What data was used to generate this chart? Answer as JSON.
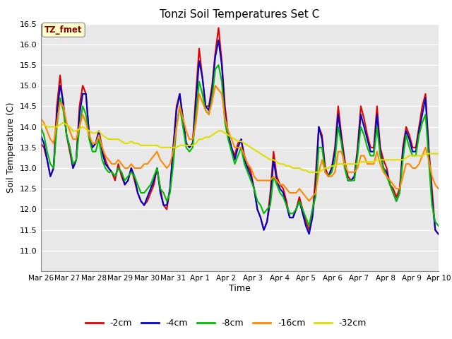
{
  "title": "Tonzi Soil Temperatures Set C",
  "xlabel": "Time",
  "ylabel": "Soil Temperature (C)",
  "ylim": [
    10.5,
    16.5
  ],
  "yticks": [
    11.0,
    11.5,
    12.0,
    12.5,
    13.0,
    13.5,
    14.0,
    14.5,
    15.0,
    15.5,
    16.0,
    16.5
  ],
  "bg_color": "#e8e8e8",
  "label_box_color": "#ffffcc",
  "label_box_text": "TZ_fmet",
  "label_box_text_color": "#8b0000",
  "series_colors": [
    "#dd0000",
    "#0000cc",
    "#00bb00",
    "#ff8800",
    "#dddd00"
  ],
  "series_labels": [
    "-2cm",
    "-4cm",
    "-8cm",
    "-16cm",
    "-32cm"
  ],
  "linewidth": 1.5,
  "x_start_day": 0,
  "x_end_day": 15,
  "xtick_positions": [
    0,
    1,
    2,
    3,
    4,
    5,
    6,
    7,
    8,
    9,
    10,
    11,
    12,
    13,
    14,
    15
  ],
  "xtick_labels": [
    "Mar 26",
    "Mar 27",
    "Mar 28",
    "Mar 29",
    "Mar 30",
    "Mar 31",
    "Apr 1",
    "Apr 2",
    "Apr 3",
    "Apr 4",
    "Apr 5",
    "Apr 6",
    "Apr 7",
    "Apr 8",
    "Apr 9",
    "Apr 10"
  ],
  "neg2cm": [
    13.6,
    13.5,
    13.2,
    12.8,
    13.0,
    14.5,
    15.25,
    14.5,
    13.8,
    13.4,
    13.0,
    13.2,
    14.5,
    15.0,
    14.8,
    13.8,
    13.5,
    13.6,
    13.9,
    13.5,
    13.2,
    13.0,
    12.9,
    12.7,
    13.1,
    12.8,
    12.6,
    12.7,
    13.0,
    12.7,
    12.4,
    12.2,
    12.1,
    12.2,
    12.4,
    12.6,
    13.0,
    12.5,
    12.1,
    12.0,
    12.5,
    13.5,
    14.5,
    14.8,
    14.2,
    13.6,
    13.5,
    13.6,
    14.8,
    15.9,
    15.2,
    14.5,
    14.5,
    15.0,
    15.8,
    16.4,
    15.6,
    14.5,
    13.8,
    13.5,
    13.3,
    13.6,
    13.7,
    13.3,
    13.1,
    12.9,
    12.5,
    12.0,
    11.8,
    11.5,
    11.7,
    12.4,
    13.4,
    12.8,
    12.6,
    12.5,
    12.2,
    11.8,
    11.8,
    12.0,
    12.3,
    12.0,
    11.7,
    11.5,
    11.8,
    12.8,
    14.0,
    13.8,
    13.0,
    12.8,
    13.0,
    13.5,
    14.5,
    13.8,
    13.2,
    12.8,
    12.7,
    12.8,
    13.5,
    14.5,
    14.2,
    13.8,
    13.5,
    13.5,
    14.5,
    13.5,
    13.2,
    13.0,
    12.6,
    12.5,
    12.3,
    12.5,
    13.5,
    14.0,
    13.8,
    13.5,
    13.5,
    14.0,
    14.5,
    14.8,
    13.5,
    12.5,
    11.5,
    11.4
  ],
  "neg4cm": [
    13.8,
    13.6,
    13.2,
    12.8,
    13.0,
    14.3,
    15.0,
    14.6,
    13.8,
    13.5,
    13.0,
    13.2,
    14.3,
    14.8,
    14.8,
    13.8,
    13.5,
    13.6,
    13.9,
    13.4,
    13.1,
    13.0,
    12.9,
    12.8,
    13.0,
    12.9,
    12.6,
    12.7,
    13.0,
    12.8,
    12.4,
    12.2,
    12.1,
    12.3,
    12.5,
    12.7,
    13.0,
    12.4,
    12.1,
    12.1,
    12.5,
    13.5,
    14.4,
    14.8,
    14.2,
    13.6,
    13.5,
    13.6,
    14.6,
    15.6,
    15.2,
    14.5,
    14.4,
    14.9,
    15.7,
    16.1,
    15.5,
    14.3,
    13.8,
    13.5,
    13.2,
    13.5,
    13.7,
    13.2,
    13.0,
    12.8,
    12.5,
    12.0,
    11.8,
    11.5,
    11.7,
    12.2,
    13.2,
    12.7,
    12.5,
    12.4,
    12.1,
    11.8,
    11.8,
    12.0,
    12.2,
    11.9,
    11.6,
    11.4,
    11.8,
    12.5,
    14.0,
    13.7,
    12.9,
    12.8,
    13.0,
    13.4,
    14.3,
    13.7,
    13.1,
    12.7,
    12.7,
    12.8,
    13.4,
    14.3,
    14.0,
    13.7,
    13.4,
    13.4,
    14.3,
    13.4,
    13.0,
    12.9,
    12.6,
    12.4,
    12.2,
    12.4,
    13.4,
    13.9,
    13.7,
    13.4,
    13.4,
    13.9,
    14.3,
    14.7,
    13.4,
    12.3,
    11.5,
    11.4
  ],
  "neg8cm": [
    14.0,
    13.8,
    13.4,
    13.1,
    13.0,
    14.0,
    14.7,
    14.4,
    13.8,
    13.5,
    13.1,
    13.2,
    14.0,
    14.5,
    14.3,
    13.7,
    13.4,
    13.4,
    13.7,
    13.2,
    13.0,
    12.9,
    12.9,
    12.8,
    13.0,
    12.9,
    12.7,
    12.8,
    12.9,
    12.8,
    12.6,
    12.4,
    12.4,
    12.5,
    12.6,
    12.8,
    13.0,
    12.5,
    12.4,
    12.2,
    12.4,
    13.1,
    14.0,
    14.5,
    14.0,
    13.5,
    13.4,
    13.5,
    14.3,
    15.1,
    14.8,
    14.4,
    14.3,
    14.7,
    15.4,
    15.5,
    15.1,
    14.1,
    13.7,
    13.4,
    13.1,
    13.3,
    13.5,
    13.1,
    12.9,
    12.7,
    12.5,
    12.2,
    12.1,
    11.9,
    12.0,
    12.1,
    12.8,
    12.6,
    12.4,
    12.3,
    12.1,
    11.9,
    11.9,
    12.0,
    12.2,
    12.0,
    11.8,
    11.6,
    12.0,
    12.3,
    13.5,
    13.5,
    12.9,
    12.8,
    12.9,
    13.2,
    14.0,
    13.6,
    13.0,
    12.7,
    12.7,
    12.7,
    13.3,
    14.0,
    13.8,
    13.5,
    13.3,
    13.3,
    14.0,
    13.3,
    13.0,
    12.8,
    12.6,
    12.4,
    12.2,
    12.4,
    13.2,
    13.8,
    13.5,
    13.3,
    13.3,
    13.8,
    14.1,
    14.3,
    13.2,
    12.1,
    11.7,
    11.6
  ],
  "neg16cm": [
    14.2,
    14.1,
    13.9,
    13.7,
    13.6,
    14.1,
    14.6,
    14.5,
    14.1,
    13.9,
    13.7,
    13.7,
    14.0,
    14.3,
    14.1,
    13.8,
    13.6,
    13.6,
    13.8,
    13.5,
    13.3,
    13.2,
    13.1,
    13.1,
    13.2,
    13.1,
    13.0,
    13.0,
    13.1,
    13.0,
    13.0,
    13.0,
    13.1,
    13.1,
    13.2,
    13.3,
    13.4,
    13.2,
    13.1,
    13.0,
    13.1,
    13.4,
    14.0,
    14.5,
    14.2,
    13.9,
    13.7,
    13.7,
    14.1,
    14.8,
    14.6,
    14.4,
    14.3,
    14.6,
    15.0,
    14.9,
    14.8,
    14.2,
    13.9,
    13.7,
    13.5,
    13.5,
    13.5,
    13.3,
    13.1,
    13.0,
    12.8,
    12.7,
    12.7,
    12.7,
    12.7,
    12.7,
    12.8,
    12.7,
    12.6,
    12.6,
    12.5,
    12.4,
    12.4,
    12.4,
    12.5,
    12.4,
    12.3,
    12.2,
    12.3,
    12.4,
    12.9,
    13.2,
    12.9,
    12.8,
    12.8,
    12.9,
    13.4,
    13.4,
    13.1,
    12.9,
    12.9,
    12.9,
    13.0,
    13.3,
    13.3,
    13.1,
    13.1,
    13.1,
    13.4,
    13.1,
    12.9,
    12.8,
    12.7,
    12.6,
    12.5,
    12.5,
    12.8,
    13.1,
    13.1,
    13.0,
    13.0,
    13.1,
    13.3,
    13.5,
    13.2,
    12.8,
    12.6,
    12.5
  ],
  "neg32cm": [
    14.05,
    14.05,
    14.0,
    14.0,
    14.0,
    14.0,
    14.05,
    14.1,
    14.05,
    14.0,
    13.9,
    13.9,
    13.95,
    14.0,
    13.95,
    13.9,
    13.85,
    13.85,
    13.9,
    13.8,
    13.75,
    13.7,
    13.7,
    13.7,
    13.7,
    13.65,
    13.6,
    13.6,
    13.65,
    13.6,
    13.6,
    13.55,
    13.55,
    13.55,
    13.55,
    13.55,
    13.55,
    13.5,
    13.5,
    13.5,
    13.5,
    13.5,
    13.5,
    13.55,
    13.55,
    13.55,
    13.55,
    13.55,
    13.6,
    13.7,
    13.7,
    13.75,
    13.75,
    13.8,
    13.85,
    13.9,
    13.9,
    13.85,
    13.8,
    13.75,
    13.7,
    13.65,
    13.65,
    13.6,
    13.55,
    13.5,
    13.45,
    13.4,
    13.35,
    13.3,
    13.25,
    13.2,
    13.2,
    13.15,
    13.1,
    13.1,
    13.05,
    13.05,
    13.0,
    13.0,
    13.0,
    12.95,
    12.95,
    12.9,
    12.9,
    12.9,
    12.9,
    12.95,
    13.0,
    13.0,
    13.05,
    13.05,
    13.1,
    13.1,
    13.1,
    13.1,
    13.1,
    13.1,
    13.1,
    13.15,
    13.15,
    13.15,
    13.15,
    13.15,
    13.2,
    13.2,
    13.2,
    13.2,
    13.2,
    13.2,
    13.2,
    13.2,
    13.2,
    13.25,
    13.3,
    13.3,
    13.3,
    13.3,
    13.3,
    13.35,
    13.35,
    13.35,
    13.35,
    13.35
  ]
}
